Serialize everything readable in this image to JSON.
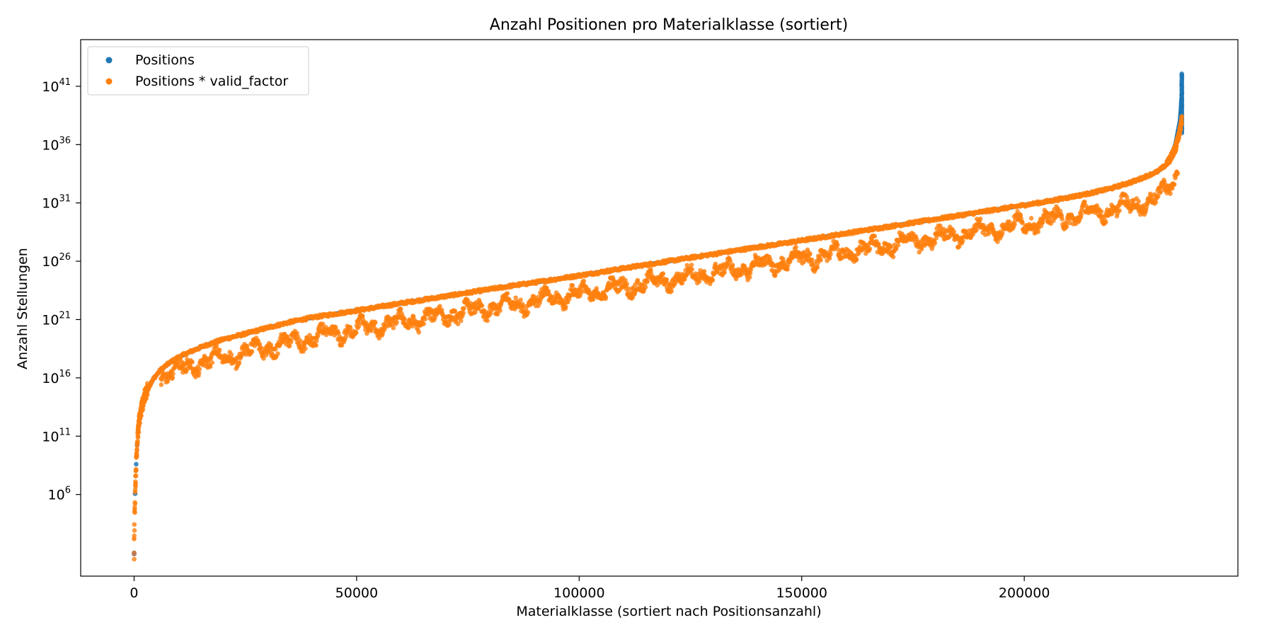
{
  "chart_data": {
    "type": "scatter",
    "title": "Anzahl Positionen pro Materialklasse (sortiert)",
    "xlabel": "Materialklasse (sortiert nach Positionsanzahl)",
    "ylabel": "Anzahl Stellungen",
    "x_scale": "linear",
    "y_scale": "log",
    "xlim": [
      -12000,
      248000
    ],
    "ylim": [
      0.1,
      1e+45
    ],
    "x_ticks": [
      0,
      50000,
      100000,
      150000,
      200000
    ],
    "x_tick_labels": [
      "0",
      "50000",
      "100000",
      "150000",
      "200000"
    ],
    "y_ticks": [
      1000000.0,
      100000000000.0,
      1e+16,
      1e+21,
      1e+26,
      1e+31,
      1e+36,
      1e+41
    ],
    "y_tick_labels": [
      {
        "base": "10",
        "exp": "6"
      },
      {
        "base": "10",
        "exp": "11"
      },
      {
        "base": "10",
        "exp": "16"
      },
      {
        "base": "10",
        "exp": "21"
      },
      {
        "base": "10",
        "exp": "26"
      },
      {
        "base": "10",
        "exp": "31"
      },
      {
        "base": "10",
        "exp": "36"
      },
      {
        "base": "10",
        "exp": "41"
      }
    ],
    "grid": false,
    "legend_position": "top-left",
    "series": [
      {
        "name": "Positions",
        "color": "#1f77b4",
        "x": [
          0,
          50,
          150,
          300,
          500,
          800,
          1200,
          2000,
          3000,
          4500,
          6000,
          8000,
          10000,
          13000,
          16000,
          20000,
          25000,
          30000,
          35000,
          40000,
          45000,
          50000,
          55000,
          60000,
          65000,
          70000,
          75000,
          80000,
          85000,
          90000,
          95000,
          100000,
          105000,
          110000,
          115000,
          120000,
          125000,
          130000,
          135000,
          140000,
          145000,
          150000,
          155000,
          160000,
          165000,
          170000,
          175000,
          180000,
          185000,
          190000,
          195000,
          200000,
          205000,
          210000,
          215000,
          220000,
          225000,
          230000,
          232000,
          233000,
          234000,
          234500,
          235000,
          235200,
          235350,
          235400
        ],
        "y": [
          10.0,
          1000.0,
          100000.0,
          10000000.0,
          1000000000.0,
          100000000000.0,
          3000000000000.0,
          100000000000000.0,
          1000000000000000.0,
          1e+16,
          5e+16,
          2e+17,
          6e+17,
          2e+18,
          6e+18,
          2e+19,
          6e+19,
          2e+20,
          6e+20,
          1.5e+21,
          3e+21,
          6e+21,
          1.2e+22,
          2.5e+22,
          5e+22,
          1e+23,
          2e+23,
          4e+23,
          8e+23,
          1.5e+24,
          3e+24,
          6e+24,
          1.2e+25,
          2.5e+25,
          5e+25,
          1e+26,
          2e+26,
          4e+26,
          8e+26,
          1.6e+27,
          3e+27,
          6e+27,
          1.2e+28,
          2.5e+28,
          5e+28,
          1e+29,
          2e+29,
          4e+29,
          8e+29,
          1.6e+30,
          3.2e+30,
          6.5e+30,
          1.3e+31,
          3e+31,
          7e+31,
          2e+32,
          8e+32,
          5e+33,
          2e+34,
          1e+35,
          1e+36,
          1e+37,
          1e+38,
          1e+39,
          1e+40,
          2e+42
        ]
      },
      {
        "name": "Positions * valid_factor",
        "color": "#ff7f0e",
        "x": [
          0,
          50,
          150,
          300,
          500,
          800,
          1200,
          2000,
          3000,
          4500,
          6000,
          8000,
          10000,
          13000,
          16000,
          20000,
          25000,
          30000,
          35000,
          40000,
          45000,
          50000,
          55000,
          60000,
          65000,
          70000,
          75000,
          80000,
          85000,
          90000,
          95000,
          100000,
          105000,
          110000,
          115000,
          120000,
          125000,
          130000,
          135000,
          140000,
          145000,
          150000,
          155000,
          160000,
          165000,
          170000,
          175000,
          180000,
          185000,
          190000,
          195000,
          200000,
          205000,
          210000,
          215000,
          220000,
          225000,
          230000,
          232000,
          233000,
          234000,
          234500,
          235000,
          235200,
          235350,
          235400
        ],
        "y": [
          10.0,
          1000.0,
          100000.0,
          10000000.0,
          1000000000.0,
          100000000000.0,
          3000000000000.0,
          100000000000000.0,
          1000000000000000.0,
          1e+16,
          5e+16,
          2e+17,
          6e+17,
          2e+18,
          6e+18,
          2e+19,
          6e+19,
          2e+20,
          6e+20,
          1.5e+21,
          3e+21,
          6e+21,
          1.2e+22,
          2.5e+22,
          5e+22,
          1e+23,
          2e+23,
          4e+23,
          8e+23,
          1.5e+24,
          3e+24,
          6e+24,
          1.2e+25,
          2.5e+25,
          5e+25,
          1e+26,
          2e+26,
          4e+26,
          8e+26,
          1.6e+27,
          3e+27,
          6e+27,
          1.2e+28,
          2.5e+28,
          5e+28,
          1e+29,
          2e+29,
          4e+29,
          8e+29,
          1.6e+30,
          3.2e+30,
          6.5e+30,
          1.3e+31,
          3e+31,
          7e+31,
          2e+32,
          8e+32,
          5e+33,
          2e+34,
          1e+35,
          5e+35,
          3e+36,
          2e+37,
          5e+37,
          1e+38,
          3e+38
        ],
        "lower_band_x": [
          6000,
          10000,
          15000,
          20000,
          25000,
          30000,
          35000,
          40000,
          45000,
          50000,
          55000,
          60000,
          65000,
          70000,
          75000,
          80000,
          85000,
          90000,
          95000,
          100000,
          105000,
          110000,
          115000,
          120000,
          125000,
          130000,
          135000,
          140000,
          145000,
          150000,
          155000,
          160000,
          165000,
          170000,
          175000,
          180000,
          185000,
          190000,
          195000,
          200000,
          205000,
          210000,
          215000,
          220000,
          225000,
          230000,
          233000,
          234500
        ],
        "lower_band_y": [
          1e+16,
          5e+16,
          2e+17,
          5e+17,
          1.5e+18,
          4e+18,
          1e+19,
          2.5e+19,
          6e+19,
          1.5e+20,
          3e+20,
          6e+20,
          1.2e+21,
          2.5e+21,
          5e+21,
          1e+22,
          2e+22,
          4e+22,
          8e+22,
          1.5e+23,
          3e+23,
          6e+23,
          1.2e+24,
          2.5e+24,
          5e+24,
          1e+25,
          2e+25,
          4e+25,
          8e+25,
          1.5e+26,
          3e+26,
          6e+26,
          1.2e+27,
          2.5e+27,
          5e+27,
          1e+28,
          2e+28,
          4e+28,
          8e+28,
          1.6e+29,
          3.2e+29,
          6.5e+29,
          1.3e+30,
          3e+30,
          7e+30,
          3e+31,
          3e+32,
          3e+33
        ]
      }
    ]
  }
}
